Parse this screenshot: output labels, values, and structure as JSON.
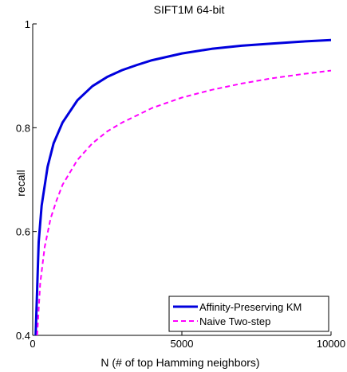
{
  "chart_data": {
    "type": "line",
    "title": "SIFT1M  64-bit",
    "xlabel": "N (# of top Hamming neighbors)",
    "ylabel": "recall",
    "xlim": [
      0,
      10000
    ],
    "ylim": [
      0.4,
      1.0
    ],
    "xticks": [
      0,
      5000,
      10000
    ],
    "xtick_labels": [
      "0",
      "5000",
      "10000"
    ],
    "yticks": [
      0.4,
      0.6,
      0.8,
      1.0
    ],
    "ytick_labels": [
      "0.4",
      "0.6",
      "0.8",
      "1"
    ],
    "grid": false,
    "legend_position": "bottom-right",
    "series": [
      {
        "name": "Affinity-Preserving KM",
        "color": "#0000dd",
        "line_style": "solid",
        "x": [
          100,
          200,
          300,
          500,
          700,
          1000,
          1500,
          2000,
          2500,
          3000,
          3500,
          4000,
          5000,
          6000,
          7000,
          8000,
          9000,
          10000
        ],
        "y": [
          0.4,
          0.58,
          0.65,
          0.725,
          0.77,
          0.81,
          0.853,
          0.88,
          0.898,
          0.911,
          0.921,
          0.93,
          0.943,
          0.952,
          0.958,
          0.962,
          0.966,
          0.969
        ]
      },
      {
        "name": "Naive Two-step",
        "color": "#ff00ff",
        "line_style": "dashed",
        "x": [
          150,
          250,
          400,
          600,
          800,
          1000,
          1500,
          2000,
          2500,
          3000,
          4000,
          5000,
          6000,
          7000,
          8000,
          9000,
          10000
        ],
        "y": [
          0.4,
          0.5,
          0.57,
          0.625,
          0.66,
          0.69,
          0.738,
          0.77,
          0.793,
          0.81,
          0.838,
          0.858,
          0.873,
          0.885,
          0.895,
          0.903,
          0.91
        ]
      }
    ]
  }
}
